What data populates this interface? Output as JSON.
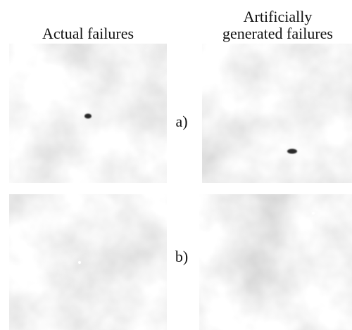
{
  "columns": [
    {
      "lines": [
        "Actual failures"
      ]
    },
    {
      "lines": [
        "Artificially",
        "generated failures"
      ]
    }
  ],
  "rows": [
    {
      "label": "a)"
    },
    {
      "label": "b)"
    }
  ]
}
